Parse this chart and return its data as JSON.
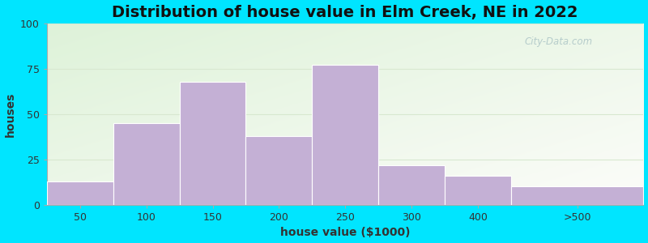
{
  "title": "Distribution of house value in Elm Creek, NE in 2022",
  "xlabel": "house value ($1000)",
  "ylabel": "houses",
  "bar_labels": [
    "50",
    "100",
    "150",
    "200",
    "250",
    "300",
    "400",
    ">500"
  ],
  "bar_heights": [
    13,
    45,
    68,
    38,
    77,
    22,
    16,
    10
  ],
  "bar_edges": [
    0,
    1,
    2,
    3,
    4,
    5,
    6,
    7,
    9
  ],
  "bar_color": "#c4b0d5",
  "bar_edgecolor": "#ffffff",
  "ylim": [
    0,
    100
  ],
  "yticks": [
    0,
    25,
    50,
    75,
    100
  ],
  "outer_bg": "#00e5ff",
  "title_fontsize": 14,
  "axis_label_fontsize": 10,
  "tick_fontsize": 9,
  "watermark": "City-Data.com",
  "grid_color": "#e0e8d8",
  "figsize": [
    8.0,
    3.0
  ],
  "dpi": 100
}
